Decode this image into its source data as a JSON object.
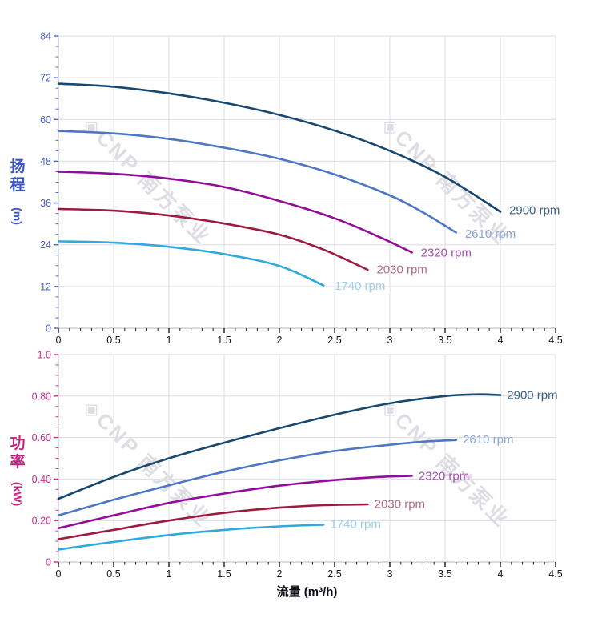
{
  "watermark": {
    "text": "◈CNP 南方泵业"
  },
  "chart_data": [
    {
      "type": "line",
      "title": "",
      "xlabel": "流量 (m³/h)",
      "ylabel": "扬程 (m)",
      "ylabel_cn": "扬程",
      "ylabel_unit": "(m)",
      "y_color": "#3a55cc",
      "y_tick_color": "#4a60d4",
      "x_tick_color": "#15151f",
      "grid": true,
      "legend_position": "end-of-curve",
      "xlim": [
        0,
        4.5
      ],
      "ylim": [
        0,
        84
      ],
      "x_major": 0.5,
      "x_minor": 0.1,
      "y_major": 12,
      "y_minor": 3,
      "x_ticks": [
        {
          "v": 0,
          "label": "0"
        },
        {
          "v": 0.5,
          "label": "0.5"
        },
        {
          "v": 1,
          "label": "1"
        },
        {
          "v": 1.5,
          "label": "1.5"
        },
        {
          "v": 2,
          "label": "2"
        },
        {
          "v": 2.5,
          "label": "2.5"
        },
        {
          "v": 3,
          "label": "3"
        },
        {
          "v": 3.5,
          "label": "3.5"
        },
        {
          "v": 4,
          "label": "4"
        },
        {
          "v": 4.5,
          "label": "4.5"
        }
      ],
      "y_ticks": [
        {
          "v": 0,
          "label": "0"
        },
        {
          "v": 12,
          "label": "12"
        },
        {
          "v": 24,
          "label": "24"
        },
        {
          "v": 36,
          "label": "36"
        },
        {
          "v": 48,
          "label": "48"
        },
        {
          "v": 60,
          "label": "60"
        },
        {
          "v": 72,
          "label": "72"
        },
        {
          "v": 84,
          "label": "84"
        }
      ],
      "series": [
        {
          "name": "2900 rpm",
          "color": "#17486f",
          "label_color": "#3c6288",
          "x": [
            0,
            0.5,
            1,
            1.5,
            2,
            2.5,
            3,
            3.5,
            4
          ],
          "y": [
            70.3,
            69.4,
            67.5,
            64.8,
            61.3,
            56.8,
            51,
            43.5,
            33.5
          ],
          "label_at": [
            4.08,
            34
          ]
        },
        {
          "name": "2610 rpm",
          "color": "#4d77c3",
          "label_color": "#8ba4d8",
          "x": [
            0,
            0.5,
            1,
            1.5,
            2,
            2.5,
            3,
            3.3,
            3.6
          ],
          "y": [
            56.7,
            56,
            54.4,
            51.9,
            48.7,
            44.2,
            38.2,
            33.3,
            27.5
          ],
          "label_at": [
            3.68,
            27.2
          ]
        },
        {
          "name": "2320 rpm",
          "color": "#930d9b",
          "label_color": "#a94fb2",
          "x": [
            0,
            0.5,
            1,
            1.5,
            2,
            2.5,
            2.9,
            3.2
          ],
          "y": [
            45,
            44.4,
            43,
            40.6,
            36.6,
            31.6,
            26.3,
            21.8
          ],
          "label_at": [
            3.28,
            21.8
          ]
        },
        {
          "name": "2030 rpm",
          "color": "#9b1b3e",
          "label_color": "#b56a80",
          "x": [
            0,
            0.5,
            1,
            1.5,
            2,
            2.4,
            2.8
          ],
          "y": [
            34.3,
            33.8,
            32.4,
            30.1,
            26.9,
            22.6,
            16.8
          ],
          "label_at": [
            2.88,
            16.9
          ]
        },
        {
          "name": "1740 rpm",
          "color": "#2fa8de",
          "label_color": "#9bcfec",
          "x": [
            0,
            0.5,
            1,
            1.5,
            2,
            2.4
          ],
          "y": [
            25,
            24.6,
            23.4,
            21.3,
            17.9,
            12.3
          ],
          "label_at": [
            2.5,
            12.2
          ]
        }
      ]
    },
    {
      "type": "line",
      "title": "",
      "xlabel": "流量 (m³/h)",
      "ylabel": "功率 (kW)",
      "ylabel_cn": "功率",
      "ylabel_unit": "(kW)",
      "y_color": "#c2267f",
      "y_tick_color": "#c92d8c",
      "x_tick_color": "#15151f",
      "grid": true,
      "legend_position": "end-of-curve",
      "xlim": [
        0,
        4.5
      ],
      "ylim": [
        0,
        1.0
      ],
      "x_major": 0.5,
      "x_minor": 0.1,
      "y_major": 0.2,
      "y_minor": 0.05,
      "x_ticks": [
        {
          "v": 0,
          "label": "0"
        },
        {
          "v": 0.5,
          "label": "0.5"
        },
        {
          "v": 1,
          "label": "1"
        },
        {
          "v": 1.5,
          "label": "1.5"
        },
        {
          "v": 2,
          "label": "2"
        },
        {
          "v": 2.5,
          "label": "2.5"
        },
        {
          "v": 3,
          "label": "3"
        },
        {
          "v": 3.5,
          "label": "3.5"
        },
        {
          "v": 4,
          "label": "4"
        },
        {
          "v": 4.5,
          "label": "4.5"
        }
      ],
      "y_ticks": [
        {
          "v": 0,
          "label": "0"
        },
        {
          "v": 0.2,
          "label": "0.20"
        },
        {
          "v": 0.4,
          "label": "0.40"
        },
        {
          "v": 0.6,
          "label": "0.60"
        },
        {
          "v": 0.8,
          "label": "0.80"
        },
        {
          "v": 1.0,
          "label": "1.0"
        }
      ],
      "series": [
        {
          "name": "2900 rpm",
          "color": "#17486f",
          "label_color": "#3c6288",
          "x": [
            0,
            0.5,
            1,
            1.5,
            2,
            2.5,
            3,
            3.5,
            3.8,
            4
          ],
          "y": [
            0.305,
            0.41,
            0.5,
            0.575,
            0.645,
            0.71,
            0.765,
            0.8,
            0.808,
            0.805
          ],
          "label_at": [
            4.06,
            0.805
          ]
        },
        {
          "name": "2610 rpm",
          "color": "#4d77c3",
          "label_color": "#8ba4d8",
          "x": [
            0,
            0.5,
            1,
            1.5,
            2,
            2.5,
            3,
            3.3,
            3.6
          ],
          "y": [
            0.225,
            0.3,
            0.37,
            0.435,
            0.49,
            0.535,
            0.565,
            0.58,
            0.588
          ],
          "label_at": [
            3.66,
            0.59
          ]
        },
        {
          "name": "2320 rpm",
          "color": "#930d9b",
          "label_color": "#a94fb2",
          "x": [
            0,
            0.5,
            1,
            1.5,
            2,
            2.5,
            2.9,
            3.2
          ],
          "y": [
            0.163,
            0.225,
            0.285,
            0.33,
            0.368,
            0.395,
            0.41,
            0.415
          ],
          "label_at": [
            3.26,
            0.415
          ]
        },
        {
          "name": "2030 rpm",
          "color": "#9b1b3e",
          "label_color": "#b56a80",
          "x": [
            0,
            0.5,
            1,
            1.5,
            2,
            2.4,
            2.8
          ],
          "y": [
            0.11,
            0.155,
            0.2,
            0.237,
            0.262,
            0.274,
            0.278
          ],
          "label_at": [
            2.86,
            0.28
          ]
        },
        {
          "name": "1740 rpm",
          "color": "#2fa8de",
          "label_color": "#9bcfec",
          "x": [
            0,
            0.5,
            1,
            1.5,
            2,
            2.4
          ],
          "y": [
            0.06,
            0.097,
            0.13,
            0.155,
            0.172,
            0.18
          ],
          "label_at": [
            2.46,
            0.183
          ]
        }
      ]
    }
  ]
}
